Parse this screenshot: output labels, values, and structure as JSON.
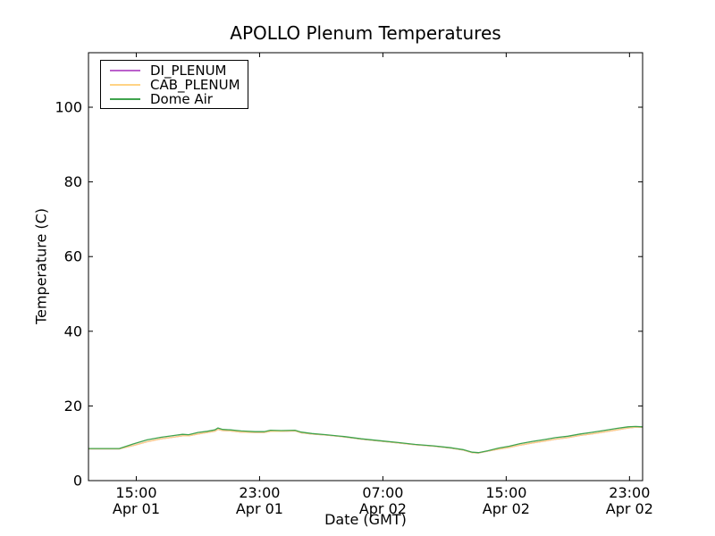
{
  "figure": {
    "background": "#ffffff",
    "frame_color": "#000000",
    "tick_color": "#000000"
  },
  "chart_data": {
    "type": "line",
    "title": "APOLLO Plenum Temperatures",
    "xlabel": "Date (GMT)",
    "ylabel": "Temperature (C)",
    "grid": false,
    "legend_position": "upper left",
    "xlim_hours_since_apr01": [
      11.9,
      47.85
    ],
    "ylim": [
      0,
      114.6
    ],
    "yticks": [
      0,
      20,
      40,
      60,
      80,
      100
    ],
    "xticks": [
      {
        "hour": 15,
        "time": "15:00",
        "date": "Apr 01"
      },
      {
        "hour": 23,
        "time": "23:00",
        "date": "Apr 01"
      },
      {
        "hour": 31,
        "time": "07:00",
        "date": "Apr 02"
      },
      {
        "hour": 39,
        "time": "15:00",
        "date": "Apr 02"
      },
      {
        "hour": 47,
        "time": "23:00",
        "date": "Apr 02"
      }
    ],
    "series": [
      {
        "name": "DI_PLENUM",
        "color": "#bb60cc",
        "points": [
          [
            11.9,
            8.5
          ],
          [
            13.9,
            8.5
          ],
          [
            14.8,
            9.4
          ],
          [
            15.7,
            10.4
          ],
          [
            16.6,
            11.2
          ],
          [
            17.5,
            11.7
          ],
          [
            18.0,
            12.0
          ],
          [
            18.4,
            12.0
          ],
          [
            19.0,
            12.5
          ],
          [
            19.6,
            12.9
          ],
          [
            20.1,
            13.2
          ],
          [
            20.3,
            13.7
          ],
          [
            20.6,
            13.4
          ],
          [
            21.1,
            13.3
          ],
          [
            21.8,
            13.0
          ],
          [
            22.7,
            12.9
          ],
          [
            23.3,
            12.9
          ],
          [
            23.7,
            13.2
          ],
          [
            24.4,
            13.2
          ],
          [
            25.3,
            13.3
          ],
          [
            25.7,
            12.8
          ],
          [
            26.4,
            12.5
          ],
          [
            27.3,
            12.2
          ],
          [
            28.5,
            11.7
          ],
          [
            29.6,
            11.1
          ],
          [
            30.8,
            10.6
          ],
          [
            32.0,
            10.1
          ],
          [
            33.1,
            9.6
          ],
          [
            34.3,
            9.2
          ],
          [
            35.4,
            8.7
          ],
          [
            36.2,
            8.2
          ],
          [
            36.8,
            7.5
          ],
          [
            37.2,
            7.4
          ],
          [
            37.8,
            7.9
          ],
          [
            38.5,
            8.4
          ],
          [
            39.2,
            8.9
          ],
          [
            39.9,
            9.5
          ],
          [
            40.7,
            10.1
          ],
          [
            41.5,
            10.6
          ],
          [
            42.2,
            11.1
          ],
          [
            43.0,
            11.5
          ],
          [
            43.8,
            12.1
          ],
          [
            44.5,
            12.5
          ],
          [
            45.3,
            13.0
          ],
          [
            46.2,
            13.6
          ],
          [
            46.9,
            14.1
          ],
          [
            47.4,
            14.3
          ],
          [
            47.85,
            14.3
          ]
        ]
      },
      {
        "name": "CAB_PLENUM",
        "color": "#ffd385",
        "points": [
          [
            11.9,
            8.5
          ],
          [
            13.9,
            8.5
          ],
          [
            14.8,
            9.4
          ],
          [
            15.7,
            10.4
          ],
          [
            16.6,
            11.2
          ],
          [
            17.5,
            11.7
          ],
          [
            18.0,
            12.0
          ],
          [
            18.4,
            12.0
          ],
          [
            19.0,
            12.5
          ],
          [
            19.6,
            12.9
          ],
          [
            20.1,
            13.2
          ],
          [
            20.3,
            13.7
          ],
          [
            20.6,
            13.4
          ],
          [
            21.1,
            13.3
          ],
          [
            21.8,
            13.0
          ],
          [
            22.7,
            12.9
          ],
          [
            23.3,
            12.9
          ],
          [
            23.7,
            13.2
          ],
          [
            24.4,
            13.2
          ],
          [
            25.3,
            13.3
          ],
          [
            25.7,
            12.8
          ],
          [
            26.4,
            12.5
          ],
          [
            27.3,
            12.2
          ],
          [
            28.5,
            11.7
          ],
          [
            29.6,
            11.1
          ],
          [
            30.8,
            10.6
          ],
          [
            32.0,
            10.1
          ],
          [
            33.1,
            9.6
          ],
          [
            34.3,
            9.2
          ],
          [
            35.4,
            8.7
          ],
          [
            36.2,
            8.2
          ],
          [
            36.8,
            7.5
          ],
          [
            37.2,
            7.4
          ],
          [
            37.8,
            7.9
          ],
          [
            38.5,
            8.4
          ],
          [
            39.2,
            8.9
          ],
          [
            39.9,
            9.5
          ],
          [
            40.7,
            10.1
          ],
          [
            41.5,
            10.6
          ],
          [
            42.2,
            11.1
          ],
          [
            43.0,
            11.5
          ],
          [
            43.8,
            12.1
          ],
          [
            44.5,
            12.5
          ],
          [
            45.3,
            13.0
          ],
          [
            46.2,
            13.6
          ],
          [
            46.9,
            14.1
          ],
          [
            47.4,
            14.3
          ],
          [
            47.85,
            14.3
          ]
        ]
      },
      {
        "name": "Dome Air",
        "color": "#3fa34d",
        "points": [
          [
            11.9,
            8.6
          ],
          [
            13.9,
            8.6
          ],
          [
            14.8,
            9.8
          ],
          [
            15.7,
            10.9
          ],
          [
            16.6,
            11.6
          ],
          [
            17.5,
            12.1
          ],
          [
            18.0,
            12.4
          ],
          [
            18.4,
            12.3
          ],
          [
            19.0,
            12.9
          ],
          [
            19.6,
            13.2
          ],
          [
            20.1,
            13.6
          ],
          [
            20.3,
            14.1
          ],
          [
            20.6,
            13.7
          ],
          [
            21.1,
            13.6
          ],
          [
            21.8,
            13.3
          ],
          [
            22.7,
            13.1
          ],
          [
            23.3,
            13.1
          ],
          [
            23.7,
            13.5
          ],
          [
            24.4,
            13.4
          ],
          [
            25.3,
            13.5
          ],
          [
            25.7,
            13.0
          ],
          [
            26.4,
            12.6
          ],
          [
            27.3,
            12.3
          ],
          [
            28.5,
            11.8
          ],
          [
            29.6,
            11.2
          ],
          [
            30.8,
            10.7
          ],
          [
            32.0,
            10.2
          ],
          [
            33.1,
            9.7
          ],
          [
            34.3,
            9.3
          ],
          [
            35.4,
            8.8
          ],
          [
            36.2,
            8.3
          ],
          [
            36.8,
            7.6
          ],
          [
            37.2,
            7.5
          ],
          [
            37.8,
            8.0
          ],
          [
            38.5,
            8.7
          ],
          [
            39.2,
            9.2
          ],
          [
            39.9,
            9.9
          ],
          [
            40.7,
            10.5
          ],
          [
            41.5,
            11.0
          ],
          [
            42.2,
            11.5
          ],
          [
            43.0,
            11.9
          ],
          [
            43.8,
            12.5
          ],
          [
            44.5,
            12.9
          ],
          [
            45.3,
            13.4
          ],
          [
            46.2,
            14.0
          ],
          [
            46.9,
            14.4
          ],
          [
            47.4,
            14.5
          ],
          [
            47.85,
            14.4
          ]
        ]
      }
    ]
  }
}
